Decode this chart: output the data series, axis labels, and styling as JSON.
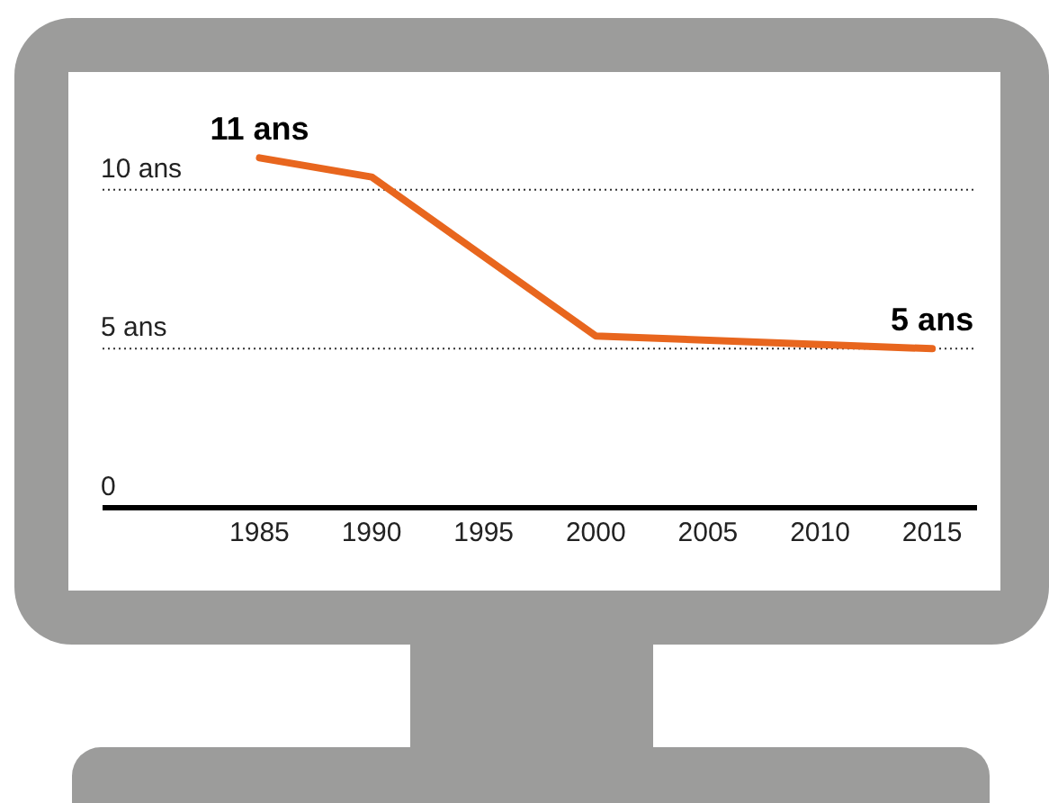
{
  "chart_data": {
    "type": "line",
    "x": [
      1985,
      1990,
      2000,
      2015
    ],
    "series": [
      {
        "color": "#e8661e",
        "values": [
          11,
          10.4,
          5.4,
          5
        ]
      }
    ],
    "xlim": [
      1978,
      2017
    ],
    "xticks": [
      1985,
      1990,
      1995,
      2000,
      2005,
      2010,
      2015
    ],
    "ylim": [
      0,
      13.7
    ],
    "yticks": [
      0,
      {
        "value": 5,
        "label": "5 ans"
      },
      {
        "value": 10,
        "label": "10 ans"
      }
    ],
    "grid": "y",
    "marker": "none",
    "line_style": "solid",
    "annotations": [
      {
        "text": "11 ans",
        "x": 1985,
        "y": 11
      },
      {
        "text": "5 ans",
        "x": 2015,
        "y": 5
      }
    ]
  }
}
